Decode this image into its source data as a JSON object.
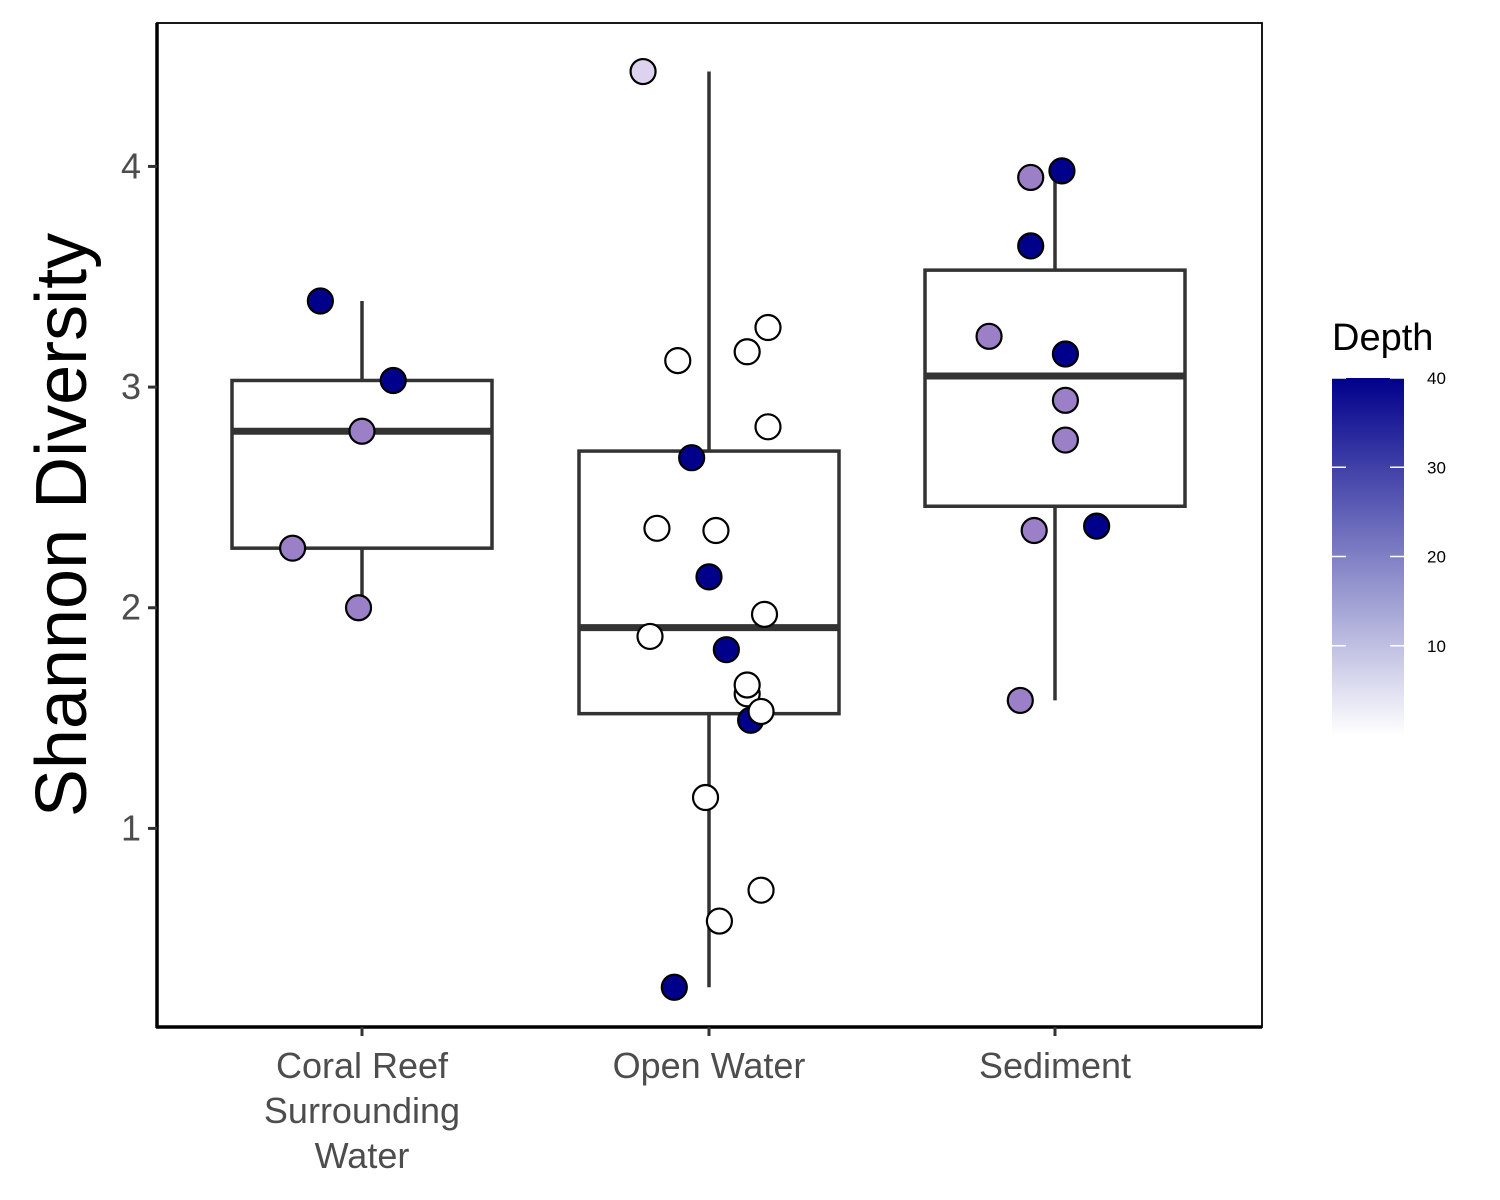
{
  "chart_data": {
    "type": "box",
    "ylabel": "Shannon Diversity",
    "xlabel": "",
    "categories": [
      "Coral Reef\nSurrounding\nWater",
      "Open Water",
      "Sediment"
    ],
    "y_ticks": [
      1,
      2,
      3,
      4
    ],
    "ylim": [
      0.1,
      4.65
    ],
    "boxes": [
      {
        "category": "Coral Reef\nSurrounding\nWater",
        "q1": 2.27,
        "median": 2.8,
        "q3": 3.03,
        "whisker_low": 2.0,
        "whisker_high": 3.39
      },
      {
        "category": "Open Water",
        "q1": 1.52,
        "median": 1.91,
        "q3": 2.71,
        "whisker_low": 0.28,
        "whisker_high": 4.43
      },
      {
        "category": "Sediment",
        "q1": 2.46,
        "median": 3.05,
        "q3": 3.53,
        "whisker_low": 1.58,
        "whisker_high": 3.98
      }
    ],
    "points": [
      {
        "category": 0,
        "jitter": -0.12,
        "y": 3.39,
        "depth": 40
      },
      {
        "category": 0,
        "jitter": 0.09,
        "y": 3.03,
        "depth": 40
      },
      {
        "category": 0,
        "jitter": 0.0,
        "y": 2.8,
        "depth": 20
      },
      {
        "category": 0,
        "jitter": -0.2,
        "y": 2.27,
        "depth": 20
      },
      {
        "category": 0,
        "jitter": -0.01,
        "y": 2.0,
        "depth": 20
      },
      {
        "category": 1,
        "jitter": -0.19,
        "y": 4.43,
        "depth": 6
      },
      {
        "category": 1,
        "jitter": 0.17,
        "y": 3.27,
        "depth": 0
      },
      {
        "category": 1,
        "jitter": -0.09,
        "y": 3.12,
        "depth": 0
      },
      {
        "category": 1,
        "jitter": 0.11,
        "y": 3.16,
        "depth": 0
      },
      {
        "category": 1,
        "jitter": 0.17,
        "y": 2.82,
        "depth": 0
      },
      {
        "category": 1,
        "jitter": -0.05,
        "y": 2.68,
        "depth": 40
      },
      {
        "category": 1,
        "jitter": -0.15,
        "y": 2.36,
        "depth": 0
      },
      {
        "category": 1,
        "jitter": 0.02,
        "y": 2.35,
        "depth": 0
      },
      {
        "category": 1,
        "jitter": 0.0,
        "y": 2.14,
        "depth": 40
      },
      {
        "category": 1,
        "jitter": 0.16,
        "y": 1.97,
        "depth": 0
      },
      {
        "category": 1,
        "jitter": -0.17,
        "y": 1.87,
        "depth": 0
      },
      {
        "category": 1,
        "jitter": 0.05,
        "y": 1.81,
        "depth": 40
      },
      {
        "category": 1,
        "jitter": 0.12,
        "y": 1.49,
        "depth": 40
      },
      {
        "category": 1,
        "jitter": 0.11,
        "y": 1.61,
        "depth": 0
      },
      {
        "category": 1,
        "jitter": 0.11,
        "y": 1.65,
        "depth": 0
      },
      {
        "category": 1,
        "jitter": 0.15,
        "y": 1.53,
        "depth": 0
      },
      {
        "category": 1,
        "jitter": -0.01,
        "y": 1.14,
        "depth": 0
      },
      {
        "category": 1,
        "jitter": 0.15,
        "y": 0.72,
        "depth": 0
      },
      {
        "category": 1,
        "jitter": 0.03,
        "y": 0.58,
        "depth": 0
      },
      {
        "category": 1,
        "jitter": -0.1,
        "y": 0.28,
        "depth": 40
      },
      {
        "category": 2,
        "jitter": 0.02,
        "y": 3.98,
        "depth": 40
      },
      {
        "category": 2,
        "jitter": -0.07,
        "y": 3.95,
        "depth": 20
      },
      {
        "category": 2,
        "jitter": -0.07,
        "y": 3.64,
        "depth": 40
      },
      {
        "category": 2,
        "jitter": -0.19,
        "y": 3.23,
        "depth": 20
      },
      {
        "category": 2,
        "jitter": 0.03,
        "y": 3.15,
        "depth": 40
      },
      {
        "category": 2,
        "jitter": 0.03,
        "y": 2.94,
        "depth": 20
      },
      {
        "category": 2,
        "jitter": 0.03,
        "y": 2.76,
        "depth": 20
      },
      {
        "category": 2,
        "jitter": 0.12,
        "y": 2.37,
        "depth": 40
      },
      {
        "category": 2,
        "jitter": -0.06,
        "y": 2.35,
        "depth": 20
      },
      {
        "category": 2,
        "jitter": -0.1,
        "y": 1.58,
        "depth": 20
      }
    ],
    "legend": {
      "title": "Depth",
      "placement": "right",
      "type": "colorbar",
      "min": 0,
      "max": 40,
      "ticks": [
        10,
        20,
        30,
        40
      ],
      "low_color": "#ffffff",
      "high_color": "#00008b"
    },
    "grid": false
  }
}
